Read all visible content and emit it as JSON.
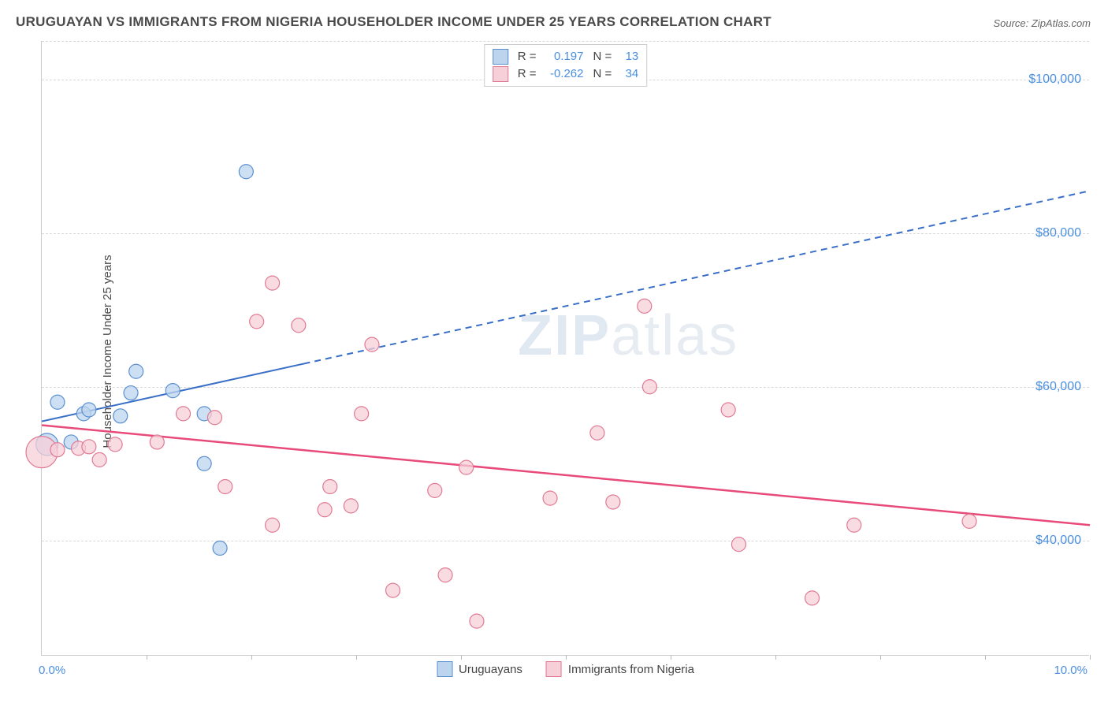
{
  "title": "URUGUAYAN VS IMMIGRANTS FROM NIGERIA HOUSEHOLDER INCOME UNDER 25 YEARS CORRELATION CHART",
  "source_label": "Source: ZipAtlas.com",
  "ylabel": "Householder Income Under 25 years",
  "watermark_bold": "ZIP",
  "watermark_thin": "atlas",
  "chart": {
    "type": "scatter",
    "xlim": [
      0,
      10
    ],
    "ylim": [
      25000,
      105000
    ],
    "x_start_label": "0.0%",
    "x_end_label": "10.0%",
    "xtick_positions": [
      0,
      1,
      2,
      3,
      4,
      5,
      6,
      7,
      8,
      9,
      10
    ],
    "y_gridlines": [
      40000,
      60000,
      80000,
      100000
    ],
    "y_tick_labels": [
      "$40,000",
      "$60,000",
      "$80,000",
      "$100,000"
    ],
    "background_color": "#ffffff",
    "grid_color": "#d8d8d8",
    "axis_color": "#cccccc",
    "tick_label_color": "#4a8fe0",
    "series": [
      {
        "id": "uruguayans",
        "label": "Uruguayans",
        "fill_color": "#bcd4ee",
        "stroke_color": "#5a8fd0",
        "point_radius": 9,
        "points": [
          {
            "x": 0.05,
            "y": 52500,
            "r": 14
          },
          {
            "x": 0.15,
            "y": 58000
          },
          {
            "x": 0.28,
            "y": 52800
          },
          {
            "x": 0.4,
            "y": 56500
          },
          {
            "x": 0.45,
            "y": 57000
          },
          {
            "x": 0.75,
            "y": 56200
          },
          {
            "x": 0.85,
            "y": 59200
          },
          {
            "x": 0.9,
            "y": 62000
          },
          {
            "x": 1.25,
            "y": 59500
          },
          {
            "x": 1.55,
            "y": 56500
          },
          {
            "x": 1.55,
            "y": 50000
          },
          {
            "x": 1.7,
            "y": 39000
          },
          {
            "x": 1.95,
            "y": 88000
          }
        ],
        "trend": {
          "x1": 0,
          "y1": 55500,
          "x2": 10,
          "y2": 85500,
          "solid_until_x": 2.5,
          "color": "#3a6fc8",
          "width": 2
        },
        "stats": {
          "r": "0.197",
          "n": "13"
        }
      },
      {
        "id": "nigeria",
        "label": "Immigrants from Nigeria",
        "fill_color": "#f7cfd8",
        "stroke_color": "#e07a93",
        "point_radius": 9,
        "points": [
          {
            "x": 0.0,
            "y": 51500,
            "r": 20
          },
          {
            "x": 0.15,
            "y": 51800
          },
          {
            "x": 0.35,
            "y": 52000
          },
          {
            "x": 0.45,
            "y": 52200
          },
          {
            "x": 0.55,
            "y": 50500
          },
          {
            "x": 0.7,
            "y": 52500
          },
          {
            "x": 1.1,
            "y": 52800
          },
          {
            "x": 1.35,
            "y": 56500
          },
          {
            "x": 1.65,
            "y": 56000
          },
          {
            "x": 1.75,
            "y": 47000
          },
          {
            "x": 2.05,
            "y": 68500
          },
          {
            "x": 2.2,
            "y": 73500
          },
          {
            "x": 2.2,
            "y": 42000
          },
          {
            "x": 2.45,
            "y": 68000
          },
          {
            "x": 2.7,
            "y": 44000
          },
          {
            "x": 2.75,
            "y": 47000
          },
          {
            "x": 2.95,
            "y": 44500
          },
          {
            "x": 3.05,
            "y": 56500
          },
          {
            "x": 3.15,
            "y": 65500
          },
          {
            "x": 3.35,
            "y": 33500
          },
          {
            "x": 3.75,
            "y": 46500
          },
          {
            "x": 3.85,
            "y": 35500
          },
          {
            "x": 4.05,
            "y": 49500
          },
          {
            "x": 4.15,
            "y": 29500
          },
          {
            "x": 4.85,
            "y": 45500
          },
          {
            "x": 5.3,
            "y": 54000
          },
          {
            "x": 5.45,
            "y": 45000
          },
          {
            "x": 5.75,
            "y": 70500
          },
          {
            "x": 5.8,
            "y": 60000
          },
          {
            "x": 6.55,
            "y": 57000
          },
          {
            "x": 6.65,
            "y": 39500
          },
          {
            "x": 7.35,
            "y": 32500
          },
          {
            "x": 7.75,
            "y": 42000
          },
          {
            "x": 8.85,
            "y": 42500
          }
        ],
        "trend": {
          "x1": 0,
          "y1": 55000,
          "x2": 10,
          "y2": 42000,
          "solid_until_x": 10,
          "color": "#e84a7a",
          "width": 2.5
        },
        "stats": {
          "r": "-0.262",
          "n": "34"
        }
      }
    ]
  },
  "stats_box": {
    "r_label": "R  =",
    "n_label": "N  ="
  }
}
